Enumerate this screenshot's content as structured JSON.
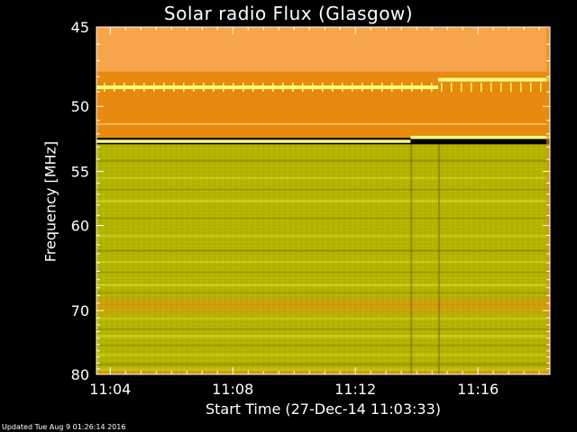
{
  "chart_data": {
    "type": "heatmap",
    "title": "Solar radio Flux (Glasgow)",
    "xlabel": "Start Time (27-Dec-14 11:03:33)",
    "ylabel": "Frequency [MHz]",
    "x_ticks": [
      "11:04",
      "11:08",
      "11:12",
      "11:16"
    ],
    "x_tick_minutes": [
      4,
      8,
      12,
      16
    ],
    "x_range_minutes": [
      3.55,
      18.35
    ],
    "y_ticks": [
      45,
      50,
      55,
      60,
      70,
      80
    ],
    "y_range_mhz": [
      45,
      80
    ],
    "y_scale": "reciprocal",
    "footer": "Updated Tue Aug  9 01:26:14 2016",
    "colors": {
      "background": "#000000",
      "high_flux": "#f7a54a",
      "mid_flux": "#e88a10",
      "low_flux": "#b4b400",
      "peak": "#ffff80",
      "axis": "#ffffff"
    },
    "bands": [
      {
        "from": 45,
        "to": 47.7,
        "level": "high"
      },
      {
        "from": 47.7,
        "to": 49.0,
        "level": "bright"
      },
      {
        "from": 49.0,
        "to": 52.3,
        "level": "mid"
      },
      {
        "from": 52.3,
        "to": 52.8,
        "level": "peak"
      },
      {
        "from": 52.8,
        "to": 80,
        "level": "low"
      }
    ]
  }
}
